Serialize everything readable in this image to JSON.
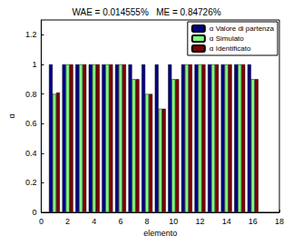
{
  "chart_data": {
    "type": "bar",
    "title": "WAE = 0.014555%   ME = 0.84726%",
    "x_label": "elemento",
    "y_label": "α",
    "x": [
      1,
      2,
      3,
      4,
      5,
      6,
      7,
      8,
      9,
      10,
      11,
      12,
      13,
      14,
      15,
      16
    ],
    "series": [
      {
        "name": "α Valore di partenza",
        "color": "#00008f",
        "values": [
          1,
          1,
          1,
          1,
          1,
          1,
          1,
          1,
          1,
          1,
          1,
          1,
          1,
          1,
          1,
          1
        ]
      },
      {
        "name": "α Simulato",
        "color": "#80ff80",
        "values": [
          0.8,
          1,
          1,
          1,
          1,
          1,
          0.9,
          0.8,
          0.7,
          0.9,
          1,
          1,
          1,
          1,
          1,
          0.9
        ]
      },
      {
        "name": "α Identificato",
        "color": "#800000",
        "values": [
          0.81,
          1,
          1,
          1,
          1,
          1,
          0.9,
          0.8,
          0.7,
          0.9,
          1,
          1,
          1,
          1,
          1,
          0.9
        ]
      }
    ],
    "xlim": [
      0,
      18
    ],
    "xticks": [
      0,
      2,
      4,
      6,
      8,
      10,
      12,
      14,
      16,
      18
    ],
    "ylim": [
      0,
      1.3
    ],
    "yticks": [
      0,
      0.2,
      0.4,
      0.6,
      0.8,
      1,
      1.2
    ],
    "legend": "upper right",
    "grid": false
  }
}
